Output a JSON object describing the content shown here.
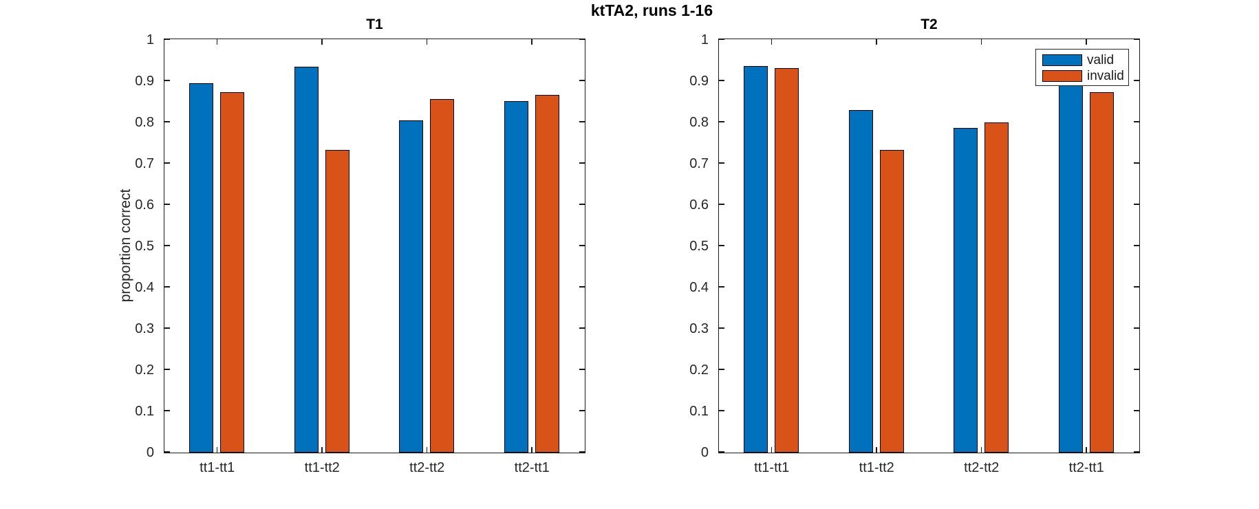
{
  "figure": {
    "title": "ktTA2, runs 1-16",
    "background": "#ffffff"
  },
  "colors": {
    "valid": "#0072BD",
    "invalid": "#D95319",
    "bar_edge": "#000000",
    "axis": "#1a1a1a",
    "text": "#262626"
  },
  "legend": {
    "position": "upper-right-of-T2",
    "entries": [
      {
        "label": "valid",
        "color": "#0072BD"
      },
      {
        "label": "invalid",
        "color": "#D95319"
      }
    ]
  },
  "chart_data": [
    {
      "type": "bar",
      "title": "T1",
      "categories": [
        "tt1-tt1",
        "tt1-tt2",
        "tt2-tt2",
        "tt2-tt1"
      ],
      "series": [
        {
          "name": "valid",
          "color": "#0072BD",
          "values": [
            0.895,
            0.935,
            0.805,
            0.852
          ]
        },
        {
          "name": "invalid",
          "color": "#D95319",
          "values": [
            0.874,
            0.733,
            0.857,
            0.866
          ]
        }
      ],
      "xlabel": "",
      "ylabel": "proportion correct",
      "ylim": [
        0,
        1
      ],
      "yticks": [
        0,
        0.1,
        0.2,
        0.3,
        0.4,
        0.5,
        0.6,
        0.7,
        0.8,
        0.9,
        1
      ],
      "ytick_labels": [
        "0",
        "0.1",
        "0.2",
        "0.3",
        "0.4",
        "0.5",
        "0.6",
        "0.7",
        "0.8",
        "0.9",
        "1"
      ],
      "grid": false,
      "legend_shown": false
    },
    {
      "type": "bar",
      "title": "T2",
      "categories": [
        "tt1-tt1",
        "tt1-tt2",
        "tt2-tt2",
        "tt2-tt1"
      ],
      "series": [
        {
          "name": "valid",
          "color": "#0072BD",
          "values": [
            0.937,
            0.83,
            0.787,
            0.89
          ]
        },
        {
          "name": "invalid",
          "color": "#D95319",
          "values": [
            0.932,
            0.733,
            0.8,
            0.874
          ]
        }
      ],
      "xlabel": "",
      "ylabel": "",
      "ylim": [
        0,
        1
      ],
      "yticks": [
        0,
        0.1,
        0.2,
        0.3,
        0.4,
        0.5,
        0.6,
        0.7,
        0.8,
        0.9,
        1
      ],
      "ytick_labels": [
        "0",
        "0.1",
        "0.2",
        "0.3",
        "0.4",
        "0.5",
        "0.6",
        "0.7",
        "0.8",
        "0.9",
        "1"
      ],
      "grid": false,
      "legend_shown": true,
      "legend_position": "upper right"
    }
  ]
}
